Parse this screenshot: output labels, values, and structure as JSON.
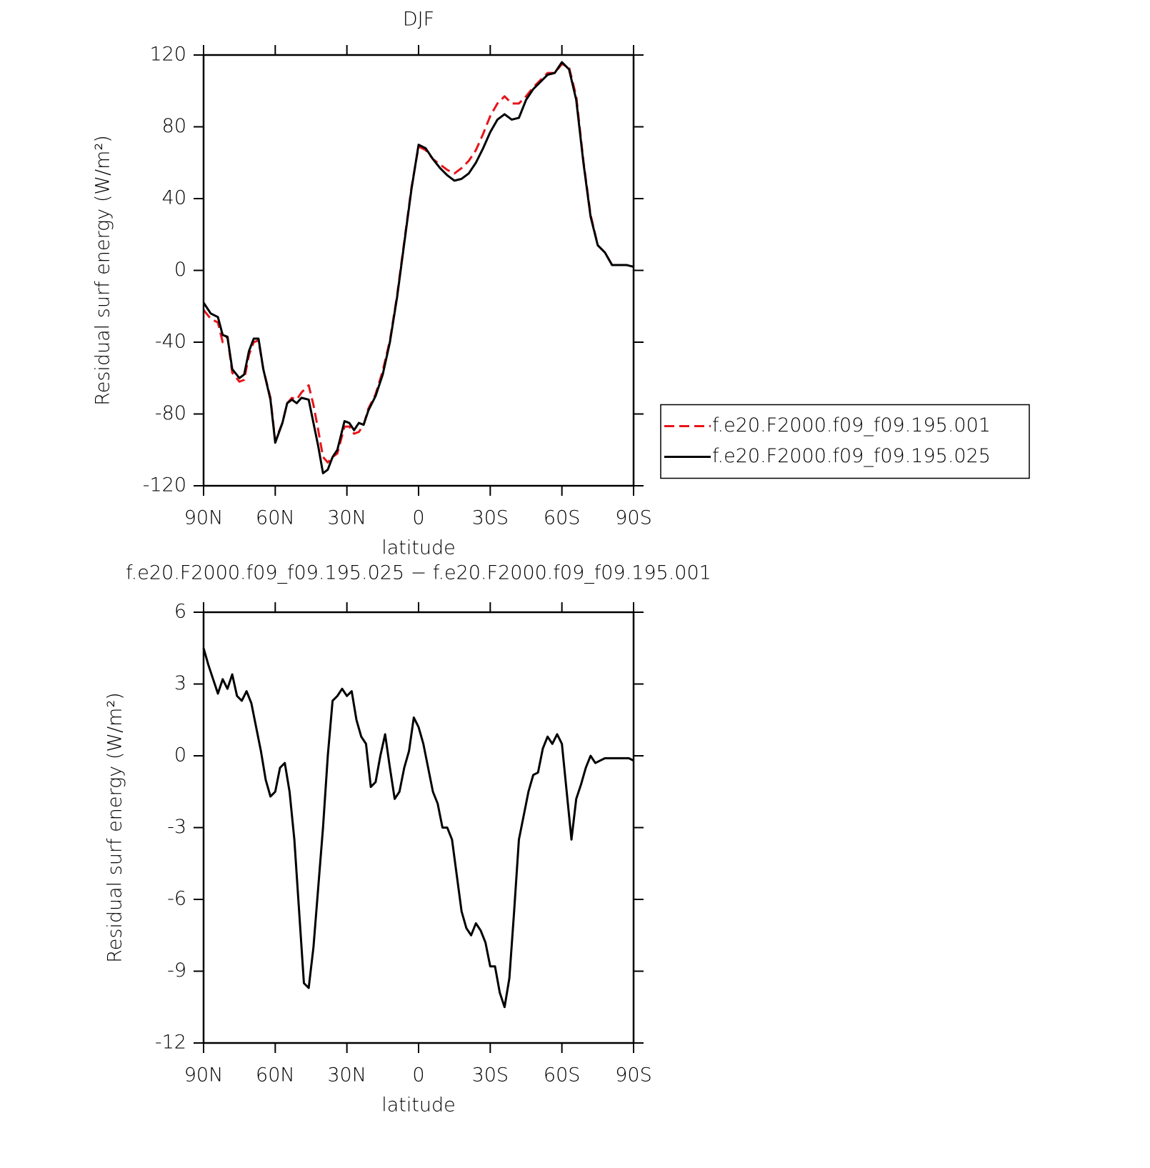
{
  "chart_data": [
    {
      "type": "line",
      "title": "DJF",
      "xlabel": "latitude",
      "ylabel": "Residual surf energy (W/m²)",
      "xlim": [
        90,
        -90
      ],
      "xticks": [
        {
          "value": 90,
          "label": "90N"
        },
        {
          "value": 60,
          "label": "60N"
        },
        {
          "value": 30,
          "label": "30N"
        },
        0,
        {
          "value": -30,
          "label": "30S"
        },
        {
          "value": -60,
          "label": "60S"
        },
        {
          "value": -90,
          "label": "90S"
        }
      ],
      "ylim": [
        -120,
        120
      ],
      "yticks": [
        -120,
        -80,
        -40,
        0,
        40,
        80,
        120
      ],
      "legend": "right",
      "x": [
        90,
        87,
        84,
        82,
        80,
        78,
        75,
        73,
        71,
        69,
        67,
        65,
        62,
        60,
        57,
        55,
        53,
        51,
        49,
        46,
        44,
        42,
        40,
        38,
        36,
        34,
        31,
        29,
        27,
        25,
        23,
        21,
        18,
        15,
        12,
        9,
        6,
        3,
        0,
        -3,
        -6,
        -9,
        -12,
        -15,
        -18,
        -21,
        -24,
        -27,
        -30,
        -33,
        -36,
        -39,
        -42,
        -45,
        -48,
        -51,
        -54,
        -57,
        -60,
        -63,
        -66,
        -69,
        -72,
        -75,
        -78,
        -81,
        -84,
        -87,
        -90
      ],
      "series": [
        {
          "name": "f.e20.F2000.f09_f09.195.001",
          "color": "#e8141a",
          "style": "dashed",
          "values": [
            -22,
            -27,
            -29,
            -40,
            -37,
            -57,
            -62,
            -61,
            -47,
            -40,
            -39,
            -55,
            -71,
            -95,
            -85,
            -74,
            -71,
            -72,
            -68,
            -64,
            -75,
            -89,
            -104,
            -107,
            -104,
            -102,
            -87,
            -87,
            -91,
            -90,
            -86,
            -77,
            -69,
            -56,
            -39,
            -14,
            16,
            46,
            69,
            67,
            62,
            59,
            56,
            54,
            57,
            61,
            67,
            76,
            86,
            93,
            97,
            93,
            93,
            97,
            102,
            106,
            110,
            110,
            115,
            113,
            97,
            61,
            31,
            14,
            10,
            3,
            3,
            3,
            2
          ]
        },
        {
          "name": "f.e20.F2000.f09_f09.195.025",
          "color": "#000000",
          "style": "solid",
          "values": [
            -18,
            -24,
            -26,
            -36,
            -37,
            -55,
            -60,
            -58,
            -45,
            -38,
            -38,
            -55,
            -72,
            -96,
            -85,
            -74,
            -72,
            -74,
            -71,
            -72,
            -85,
            -98,
            -113,
            -111,
            -104,
            -100,
            -84,
            -85,
            -89,
            -85,
            -86,
            -78,
            -70,
            -58,
            -40,
            -15,
            15,
            45,
            70,
            68,
            62,
            57,
            53,
            50,
            51,
            54,
            60,
            68,
            77,
            84,
            87,
            84,
            85,
            95,
            101,
            105,
            109,
            110,
            116,
            112,
            95,
            60,
            30,
            14,
            10,
            3,
            3,
            3,
            2
          ]
        }
      ]
    },
    {
      "type": "line",
      "title": "f.e20.F2000.f09_f09.195.025 − f.e20.F2000.f09_f09.195.001",
      "xlabel": "latitude",
      "ylabel": "Residual surf energy (W/m²)",
      "xlim": [
        90,
        -90
      ],
      "xticks": [
        {
          "value": 90,
          "label": "90N"
        },
        {
          "value": 60,
          "label": "60N"
        },
        {
          "value": 30,
          "label": "30N"
        },
        0,
        {
          "value": -30,
          "label": "30S"
        },
        {
          "value": -60,
          "label": "60S"
        },
        {
          "value": -90,
          "label": "90S"
        }
      ],
      "ylim": [
        -12,
        6
      ],
      "yticks": [
        -12,
        -9,
        -6,
        -3,
        0,
        3,
        6
      ],
      "x": [
        90,
        88,
        86,
        84,
        82,
        80,
        78,
        76,
        74,
        72,
        70,
        68,
        66,
        64,
        62,
        60,
        58,
        56,
        54,
        52,
        50,
        48,
        46,
        44,
        42,
        40,
        38,
        36,
        34,
        32,
        30,
        28,
        26,
        24,
        22,
        20,
        18,
        16,
        14,
        12,
        10,
        8,
        6,
        4,
        2,
        0,
        -2,
        -4,
        -6,
        -8,
        -10,
        -12,
        -14,
        -16,
        -18,
        -20,
        -22,
        -24,
        -26,
        -28,
        -30,
        -32,
        -34,
        -36,
        -38,
        -40,
        -42,
        -44,
        -46,
        -48,
        -50,
        -52,
        -54,
        -56,
        -58,
        -60,
        -62,
        -64,
        -66,
        -68,
        -70,
        -72,
        -74,
        -76,
        -78,
        -80,
        -84,
        -88,
        -90
      ],
      "series": [
        {
          "color": "#000000",
          "style": "solid",
          "values": [
            4.5,
            3.8,
            3.2,
            2.6,
            3.2,
            2.8,
            3.4,
            2.5,
            2.3,
            2.7,
            2.2,
            1.2,
            0.2,
            -1.0,
            -1.7,
            -1.5,
            -0.5,
            -0.3,
            -1.5,
            -3.5,
            -6.5,
            -9.5,
            -9.7,
            -8,
            -5.5,
            -3.0,
            0,
            2.3,
            2.5,
            2.8,
            2.5,
            2.7,
            1.5,
            0.8,
            0.5,
            -1.3,
            -1.1,
            0,
            0.9,
            -0.5,
            -1.8,
            -1.5,
            -0.5,
            0.2,
            1.6,
            1.2,
            0.5,
            -0.5,
            -1.5,
            -2.0,
            -3.0,
            -3.0,
            -3.5,
            -5.0,
            -6.5,
            -7.2,
            -7.5,
            -7.0,
            -7.3,
            -7.8,
            -8.8,
            -8.8,
            -9.9,
            -10.5,
            -9.3,
            -6.5,
            -3.5,
            -2.5,
            -1.5,
            -0.8,
            -0.7,
            0.3,
            0.8,
            0.5,
            0.9,
            0.5,
            -1.5,
            -3.5,
            -1.8,
            -1.2,
            -0.5,
            0,
            -0.3,
            -0.2,
            -0.1,
            -0.1,
            -0.1,
            -0.1,
            -0.2
          ]
        }
      ]
    }
  ]
}
